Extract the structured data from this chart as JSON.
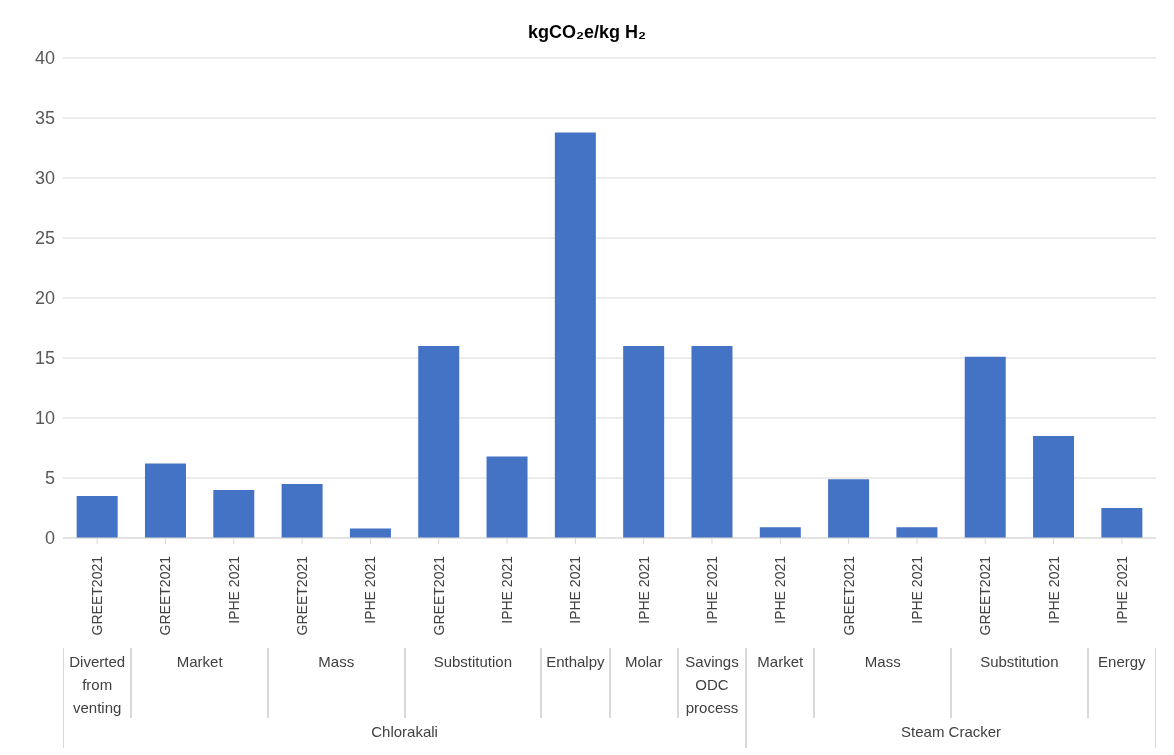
{
  "chart_data": {
    "type": "bar",
    "title": "kgCO₂e/kg H₂",
    "categories": [
      "GREET2021",
      "GREET2021",
      "IPHE 2021",
      "GREET2021",
      "IPHE 2021",
      "GREET2021",
      "IPHE 2021",
      "IPHE 2021",
      "IPHE 2021",
      "IPHE 2021",
      "IPHE 2021",
      "GREET2021",
      "IPHE 2021",
      "GREET2021",
      "IPHE 2021",
      "IPHE 2021"
    ],
    "values": [
      3.5,
      6.2,
      4.0,
      4.5,
      0.8,
      16.0,
      6.8,
      33.8,
      16.0,
      16.0,
      0.9,
      4.9,
      0.9,
      15.1,
      8.5,
      2.5
    ],
    "color": "#4472c4",
    "ylim": [
      0,
      40
    ],
    "yticks": [
      0,
      5,
      10,
      15,
      20,
      25,
      30,
      35,
      40
    ],
    "grid": "y",
    "annotations": [
      "Diverted from venting",
      "Market",
      "Mass",
      "Substitution",
      "Enthalpy",
      "Molar",
      "Savings ODC process",
      "Market",
      "Mass",
      "Substitution",
      "Energy",
      "Chlorakali",
      "Steam Cracker"
    ]
  }
}
